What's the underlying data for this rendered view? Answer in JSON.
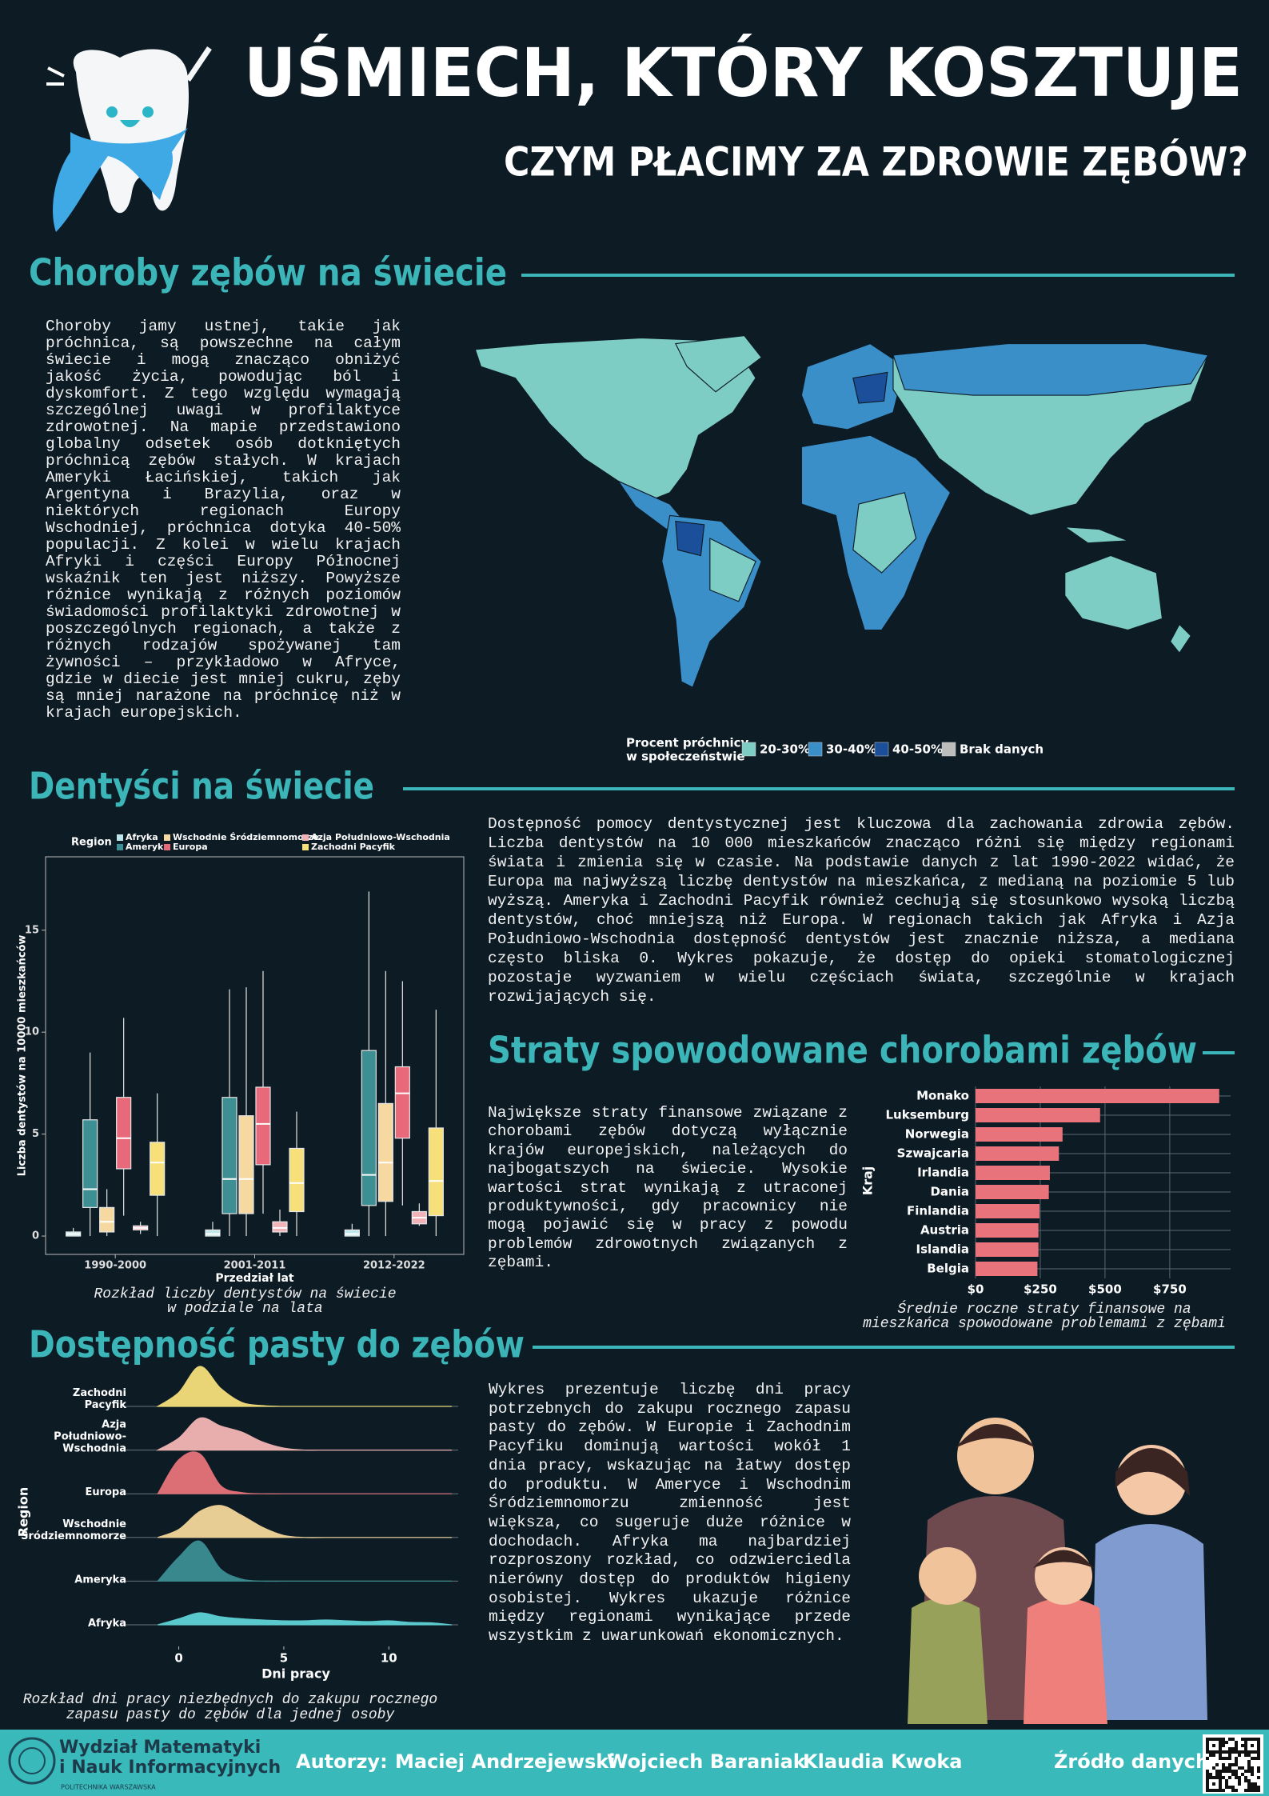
{
  "header": {
    "title": "UŚMIECH, KTÓRY KOSZTUJE",
    "subtitle": "CZYM PŁACIMY ZA ZDROWIE ZĘBÓW?"
  },
  "sections": [
    {
      "heading": "Choroby zębów na świecie",
      "text": "Choroby jamy ustnej, takie jak próchnica, są powszechne na całym świecie i mogą znacząco obniżyć jakość życia, powodując ból i dyskomfort. Z tego względu wymagają szczególnej uwagi w profilaktyce zdrowotnej. Na mapie przedstawiono globalny odsetek osób dotkniętych próchnicą zębów stałych. W krajach Ameryki Łacińskiej, takich jak Argentyna i Brazylia, oraz w niektórych regionach Europy Wschodniej, próchnica dotyka 40-50% populacji. Z kolei w wielu krajach Afryki i części Europy Północnej wskaźnik ten jest niższy. Powyższe różnice wynikają z różnych poziomów świadomości profilaktyki zdrowotnej w poszczególnych regionach, a także z różnych rodzajów spożywanej tam żywności – przykładowo w Afryce, gdzie w diecie jest mniej cukru, zęby są mniej narażone na próchnicę niż w krajach europejskich."
    },
    {
      "heading": "Dentyści na świecie",
      "text": "Dostępność pomocy dentystycznej jest kluczowa dla zachowania zdrowia zębów. Liczba dentystów na 10 000 mieszkańców znacząco różni się między regionami świata i zmienia się w czasie. Na podstawie danych z lat 1990-2022 widać, że Europa ma najwyższą liczbę dentystów na mieszkańca, z medianą na poziomie 5 lub wyższą. Ameryka i Zachodni Pacyfik również cechują się stosunkowo wysoką liczbą dentystów, choć mniejszą niż Europa. W regionach takich jak Afryka i Azja Południowo-Wschodnia dostępność dentystów jest znacznie niższa, a mediana często bliska 0. Wykres pokazuje, że dostęp do opieki stomatologicznej pozostaje wyzwaniem w wielu częściach świata, szczególnie w krajach rozwijających się."
    },
    {
      "heading": "Straty spowodowane chorobami zębów",
      "text": "Największe straty finansowe związane z chorobami zębów dotyczą wyłącznie krajów europejskich, należących do najbogatszych na świecie. Wysokie wartości strat wynikają z utraconej produktywności, gdy pracownicy nie mogą pojawić się w pracy z powodu problemów zdrowotnych związanych z zębami."
    },
    {
      "heading": "Dostępność pasty do zębów",
      "text": "Wykres prezentuje liczbę dni pracy potrzebnych do zakupu rocznego zapasu pasty do zębów. W Europie i Zachodnim Pacyfiku dominują wartości wokół 1 dnia pracy, wskazując na łatwy dostęp do produktu. W Ameryce i Wschodnim Śródziemnomorzu zmienność jest większa, co sugeruje duże różnice w dochodach. Afryka ma najbardziej rozproszony rozkład, co odzwierciedla nierówny dostęp do produktów higieny osobistej. Wykres ukazuje różnice między regionami wynikające przede wszystkim z uwarunkowań ekonomicznych."
    }
  ],
  "map": {
    "legend_title": [
      "Procent próchnicy",
      "w społeczeństwie"
    ],
    "legend": [
      {
        "label": "20-30%",
        "color": "#7ecdc4"
      },
      {
        "label": "30-40%",
        "color": "#3b8fc9"
      },
      {
        "label": "40-50%",
        "color": "#1c4f99"
      },
      {
        "label": "Brak danych",
        "color": "#bdbdbd"
      }
    ]
  },
  "chart_data": [
    {
      "type": "box",
      "legend_title": "Region",
      "ylabel": "Liczba dentystów na 10000 mieszkańców",
      "xlabel": "Przedział lat",
      "caption": [
        "Rozkład liczby dentystów na świecie",
        "w podziale na lata"
      ],
      "categories": [
        "1990-2000",
        "2001-2011",
        "2012-2022"
      ],
      "ylim": [
        -0.9,
        18.6
      ],
      "yticks": [
        0,
        5,
        10,
        15
      ],
      "grid": false,
      "series": [
        {
          "name": "Afryka",
          "color": "#bfe6ea",
          "min": [
            0,
            0,
            0
          ],
          "q1": [
            0,
            0,
            0
          ],
          "median": [
            0.1,
            0.1,
            0.1
          ],
          "q3": [
            0.2,
            0.3,
            0.3
          ],
          "max": [
            0.4,
            0.7,
            0.6
          ]
        },
        {
          "name": "Ameryka",
          "color": "#3d8f93",
          "min": [
            0,
            0,
            0
          ],
          "q1": [
            1.4,
            1.1,
            1.5
          ],
          "median": [
            2.3,
            2.8,
            3.0
          ],
          "q3": [
            5.7,
            6.8,
            9.1
          ],
          "max": [
            9.0,
            12.1,
            16.9
          ]
        },
        {
          "name": "Wschodnie Śródziemnomorze",
          "color": "#f5d9a0",
          "min": [
            0,
            0,
            0
          ],
          "q1": [
            0.2,
            1.1,
            1.7
          ],
          "median": [
            0.7,
            2.8,
            3.6
          ],
          "q3": [
            1.4,
            5.9,
            6.5
          ],
          "max": [
            2.3,
            12.2,
            13.0
          ]
        },
        {
          "name": "Europa",
          "color": "#e86a7a",
          "min": [
            1.0,
            1.1,
            1.5
          ],
          "q1": [
            3.3,
            3.5,
            4.8
          ],
          "median": [
            4.8,
            5.5,
            7.0
          ],
          "q3": [
            6.8,
            7.3,
            8.3
          ],
          "max": [
            10.7,
            13.0,
            12.5
          ]
        },
        {
          "name": "Azja Południowo-Wschodnia",
          "color": "#f2b3b8",
          "min": [
            0.1,
            0,
            0.5
          ],
          "q1": [
            0.3,
            0.2,
            0.6
          ],
          "median": [
            0.4,
            0.4,
            0.9
          ],
          "q3": [
            0.5,
            0.7,
            1.2
          ],
          "max": [
            0.7,
            1.3,
            1.6
          ]
        },
        {
          "name": "Zachodni Pacyfik",
          "color": "#f7e07a",
          "min": [
            0,
            0,
            0
          ],
          "q1": [
            2.0,
            1.2,
            1.0
          ],
          "median": [
            3.6,
            2.6,
            2.7
          ],
          "q3": [
            4.6,
            4.3,
            5.3
          ],
          "max": [
            7.0,
            6.1,
            11.1
          ]
        }
      ]
    },
    {
      "type": "bar",
      "ylabel": "Kraj",
      "caption": [
        "Średnie roczne straty finansowe na",
        "mieszkańca spowodowane problemami z zębami"
      ],
      "categories": [
        "Monako",
        "Luksemburg",
        "Norwegia",
        "Szwajcaria",
        "Irlandia",
        "Dania",
        "Finlandia",
        "Austria",
        "Islandia",
        "Belgia"
      ],
      "values": [
        941,
        481,
        336,
        322,
        287,
        283,
        247,
        243,
        243,
        239
      ],
      "color": "#e8737a",
      "xlim": [
        0,
        985
      ],
      "xticks": [
        {
          "value": 0,
          "label": "$0"
        },
        {
          "value": 250,
          "label": "$250"
        },
        {
          "value": 500,
          "label": "$500"
        },
        {
          "value": 750,
          "label": "$750"
        }
      ],
      "grid": true
    },
    {
      "type": "ridgeline",
      "ylabel": "Region",
      "xlabel": "Dni pracy",
      "caption": [
        "Rozkład dni pracy niezbędnych do zakupu rocznego",
        "zapasu pasty do zębów dla jednej osoby"
      ],
      "x": [
        -1,
        0,
        1,
        2,
        3,
        4,
        5,
        6,
        7,
        8,
        9,
        10,
        11,
        12,
        13
      ],
      "xlim": [
        -2.8,
        13.3
      ],
      "xticks": [
        0,
        5,
        10
      ],
      "series": [
        {
          "name": "Zachodni Pacyfik",
          "color": "#f5e07a",
          "values": [
            0,
            0.35,
            1.0,
            0.45,
            0.1,
            0.02,
            0,
            0,
            0,
            0,
            0,
            0,
            0,
            0,
            0
          ]
        },
        {
          "name": "Azja Południowo-Wschodnia",
          "color": "#f4b6b6",
          "values": [
            0,
            0.3,
            0.8,
            0.6,
            0.45,
            0.2,
            0.05,
            0,
            0,
            0,
            0,
            0,
            0,
            0,
            0
          ]
        },
        {
          "name": "Europa",
          "color": "#e8737a",
          "values": [
            0,
            0.85,
            1.0,
            0.2,
            0.03,
            0,
            0,
            0,
            0,
            0,
            0,
            0,
            0,
            0,
            0
          ]
        },
        {
          "name": "Wschodnie Śródziemnomorze",
          "color": "#f3d79a",
          "values": [
            0,
            0.2,
            0.65,
            0.8,
            0.55,
            0.25,
            0.05,
            0,
            0,
            0,
            0,
            0,
            0,
            0,
            0
          ]
        },
        {
          "name": "Ameryka",
          "color": "#3b8e93",
          "values": [
            0,
            0.6,
            1.0,
            0.3,
            0.05,
            0,
            0,
            0,
            0,
            0,
            0,
            0,
            0,
            0,
            0
          ]
        },
        {
          "name": "Afryka",
          "color": "#5fd3d6",
          "values": [
            0,
            0.15,
            0.3,
            0.2,
            0.15,
            0.12,
            0.1,
            0.1,
            0.12,
            0.1,
            0.08,
            0.1,
            0.06,
            0.05,
            0
          ]
        }
      ]
    }
  ],
  "footer": {
    "faculty": [
      "Wydział Matematyki",
      "i Nauk Informacyjnych"
    ],
    "university": "POLITECHNIKA WARSZAWSKA",
    "authors_label": "Autorzy:",
    "authors": [
      "Maciej Andrzejewski",
      "Wojciech Baraniak",
      "Klaudia Kwoka"
    ],
    "source_label": "Źródło danych:"
  }
}
